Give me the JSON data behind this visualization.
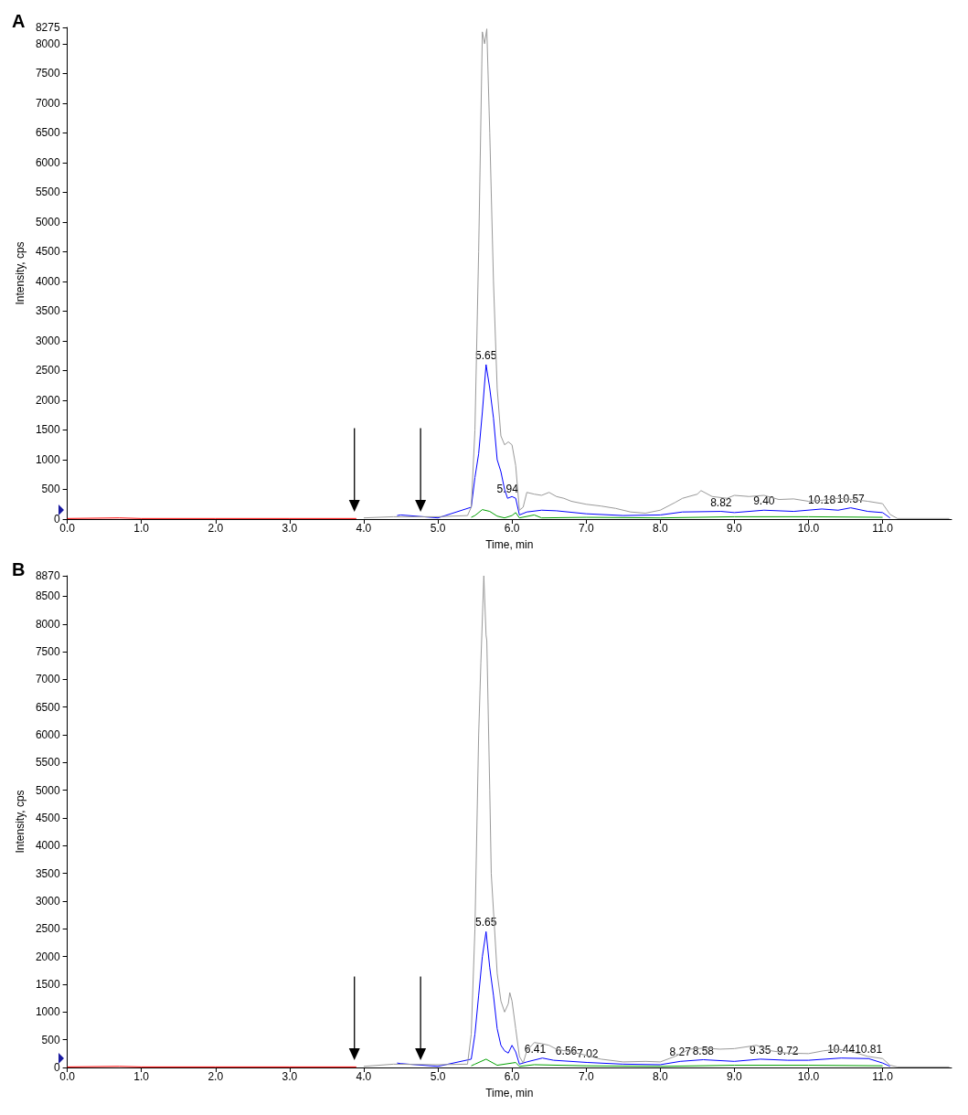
{
  "chart_data": [
    {
      "type": "line",
      "title": "A",
      "xlabel": "Time, min",
      "ylabel": "Intensity, cps",
      "xlim": [
        0,
        11.93
      ],
      "ylim": [
        0,
        8275
      ],
      "xticks": [
        {
          "value": 0,
          "label": "0.0"
        },
        {
          "value": 1,
          "label": "1.0"
        },
        {
          "value": 2,
          "label": "2.0"
        },
        {
          "value": 3,
          "label": "3.0"
        },
        {
          "value": 4,
          "label": "4.0"
        },
        {
          "value": 5,
          "label": "5.0"
        },
        {
          "value": 6,
          "label": "6.0"
        },
        {
          "value": 7,
          "label": "7.0"
        },
        {
          "value": 8,
          "label": "8.0"
        },
        {
          "value": 9,
          "label": "9.0"
        },
        {
          "value": 10,
          "label": "10.0"
        },
        {
          "value": 11,
          "label": "11.0"
        }
      ],
      "yticks": [
        0,
        500,
        1000,
        1500,
        2000,
        2500,
        3000,
        3500,
        4000,
        4500,
        5000,
        5500,
        6000,
        6500,
        7000,
        7500,
        8000,
        8275
      ],
      "series": [
        {
          "color": "#999999",
          "x": [
            4,
            4.4,
            5.0,
            5.4,
            5.45,
            5.5,
            5.55,
            5.6,
            5.63,
            5.66,
            5.7,
            5.75,
            5.8,
            5.85,
            5.9,
            5.95,
            6.0,
            6.05,
            6.1,
            6.15,
            6.2,
            6.3,
            6.4,
            6.5,
            6.6,
            6.7,
            6.8,
            7.0,
            7.2,
            7.4,
            7.6,
            7.8,
            8.0,
            8.2,
            8.3,
            8.5,
            8.55,
            8.7,
            8.9,
            9.0,
            9.2,
            9.4,
            9.6,
            9.8,
            10.0,
            10.2,
            10.4,
            10.6,
            10.8,
            11.0,
            11.1,
            11.2,
            11.9
          ],
          "values": [
            20,
            40,
            40,
            60,
            200,
            1500,
            4500,
            8200,
            8000,
            8250,
            6500,
            4000,
            2200,
            1400,
            1250,
            1300,
            1250,
            900,
            150,
            200,
            450,
            420,
            400,
            450,
            380,
            350,
            300,
            250,
            220,
            180,
            120,
            100,
            150,
            280,
            350,
            420,
            480,
            380,
            350,
            400,
            380,
            400,
            330,
            340,
            300,
            320,
            350,
            330,
            300,
            260,
            80,
            10,
            10
          ]
        },
        {
          "color": "#0000ff",
          "x": [
            4.45,
            4.5,
            5.0,
            5.45,
            5.5,
            5.55,
            5.6,
            5.65,
            5.7,
            5.75,
            5.8,
            5.85,
            5.9,
            5.94,
            6.0,
            6.05,
            6.1,
            6.2,
            6.4,
            6.6,
            7.0,
            7.5,
            8.0,
            8.3,
            8.82,
            9.0,
            9.4,
            9.8,
            10.18,
            10.4,
            10.57,
            10.8,
            11.0,
            11.1
          ],
          "values": [
            60,
            70,
            20,
            200,
            700,
            1100,
            1800,
            2600,
            2200,
            1700,
            1000,
            800,
            500,
            350,
            380,
            350,
            70,
            120,
            150,
            140,
            90,
            60,
            70,
            120,
            130,
            110,
            150,
            130,
            170,
            150,
            190,
            130,
            110,
            20
          ]
        },
        {
          "color": "#00a000",
          "x": [
            5.45,
            5.5,
            5.6,
            5.7,
            5.8,
            5.9,
            6.0,
            6.05,
            6.1,
            6.3,
            6.4,
            7.0,
            8.0,
            9.0,
            10.0,
            11.0
          ],
          "values": [
            30,
            60,
            160,
            130,
            50,
            20,
            60,
            110,
            20,
            70,
            20,
            30,
            20,
            40,
            40,
            30
          ]
        },
        {
          "color": "#ff0000",
          "x": [
            0,
            0.7,
            1,
            2,
            3,
            3.9
          ],
          "values": [
            10,
            20,
            10,
            10,
            10,
            10
          ]
        }
      ],
      "annotations": [
        {
          "text": "5.65",
          "x": 5.65,
          "y": 2600
        },
        {
          "text": "5.94",
          "x": 5.94,
          "y": 350
        },
        {
          "text": "8.82",
          "x": 8.82,
          "y": 130
        },
        {
          "text": "9.40",
          "x": 9.4,
          "y": 150
        },
        {
          "text": "10.18",
          "x": 10.18,
          "y": 170
        },
        {
          "text": "10.57",
          "x": 10.57,
          "y": 190
        }
      ]
    },
    {
      "type": "line",
      "title": "B",
      "xlabel": "Time, min",
      "ylabel": "Intensity, cps",
      "xlim": [
        0,
        11.93
      ],
      "ylim": [
        0,
        8870
      ],
      "xticks": [
        {
          "value": 0,
          "label": "0.0"
        },
        {
          "value": 1,
          "label": "1.0"
        },
        {
          "value": 2,
          "label": "2.0"
        },
        {
          "value": 3,
          "label": "3.0"
        },
        {
          "value": 4,
          "label": "4.0"
        },
        {
          "value": 5,
          "label": "5.0"
        },
        {
          "value": 6,
          "label": "6.0"
        },
        {
          "value": 7,
          "label": "7.0"
        },
        {
          "value": 8,
          "label": "8.0"
        },
        {
          "value": 9,
          "label": "9.0"
        },
        {
          "value": 10,
          "label": "10.0"
        },
        {
          "value": 11,
          "label": "11.0"
        }
      ],
      "yticks": [
        0,
        500,
        1000,
        1500,
        2000,
        2500,
        3000,
        3500,
        4000,
        4500,
        5000,
        5500,
        6000,
        6500,
        7000,
        7500,
        8000,
        8500,
        8870
      ],
      "series": [
        {
          "color": "#999999",
          "x": [
            4,
            4.4,
            5.0,
            5.4,
            5.45,
            5.5,
            5.55,
            5.58,
            5.62,
            5.65,
            5.66,
            5.7,
            5.72,
            5.8,
            5.85,
            5.9,
            5.95,
            5.97,
            6.0,
            6.05,
            6.1,
            6.15,
            6.2,
            6.3,
            6.4,
            6.5,
            6.6,
            6.8,
            7.0,
            7.2,
            7.5,
            7.8,
            8.0,
            8.2,
            8.4,
            8.6,
            8.8,
            9.0,
            9.3,
            9.5,
            9.7,
            10.0,
            10.2,
            10.4,
            10.6,
            10.8,
            11.0,
            11.1,
            11.2,
            11.9
          ],
          "values": [
            20,
            60,
            50,
            60,
            600,
            2500,
            6000,
            7300,
            8870,
            7800,
            7700,
            5000,
            3500,
            1700,
            1200,
            1000,
            1150,
            1350,
            1200,
            700,
            200,
            80,
            300,
            450,
            430,
            400,
            330,
            280,
            220,
            150,
            100,
            110,
            100,
            200,
            330,
            350,
            330,
            340,
            400,
            300,
            260,
            250,
            300,
            330,
            280,
            200,
            160,
            40,
            10,
            10
          ]
        },
        {
          "color": "#0000ff",
          "x": [
            4.45,
            4.5,
            5.0,
            5.45,
            5.5,
            5.55,
            5.6,
            5.65,
            5.7,
            5.75,
            5.8,
            5.85,
            5.9,
            5.95,
            6.0,
            6.05,
            6.1,
            6.2,
            6.41,
            6.56,
            7.02,
            7.5,
            8.0,
            8.27,
            8.58,
            9.0,
            9.35,
            9.72,
            10.0,
            10.44,
            10.81,
            11.0,
            11.1
          ],
          "values": [
            80,
            70,
            20,
            150,
            600,
            1300,
            2000,
            2450,
            1800,
            1300,
            700,
            400,
            300,
            260,
            400,
            280,
            60,
            100,
            170,
            130,
            90,
            60,
            50,
            110,
            140,
            110,
            150,
            130,
            130,
            170,
            160,
            80,
            20
          ]
        },
        {
          "color": "#00a000",
          "x": [
            5.45,
            5.5,
            5.65,
            5.8,
            6.0,
            6.05,
            6.1,
            6.3,
            7.0,
            8.0,
            9.0,
            10.0,
            11.0
          ],
          "values": [
            30,
            60,
            150,
            40,
            80,
            90,
            20,
            50,
            30,
            20,
            40,
            40,
            30
          ]
        },
        {
          "color": "#ff0000",
          "x": [
            0,
            0.7,
            1,
            2,
            3,
            3.9
          ],
          "values": [
            10,
            20,
            10,
            10,
            10,
            10
          ]
        }
      ],
      "annotations": [
        {
          "text": "5.65",
          "x": 5.65,
          "y": 2450
        },
        {
          "text": "6.41",
          "x": 6.41,
          "y": 170
        },
        {
          "text": "6.56",
          "x": 6.56,
          "y": 130
        },
        {
          "text": "7.02",
          "x": 7.02,
          "y": 90
        },
        {
          "text": "8.27",
          "x": 8.27,
          "y": 110
        },
        {
          "text": "8.58",
          "x": 8.58,
          "y": 140
        },
        {
          "text": "9.35",
          "x": 9.35,
          "y": 150
        },
        {
          "text": "9.72",
          "x": 9.72,
          "y": 130
        },
        {
          "text": "10.44",
          "x": 10.44,
          "y": 170
        },
        {
          "text": "10.81",
          "x": 10.81,
          "y": 160
        }
      ]
    }
  ]
}
